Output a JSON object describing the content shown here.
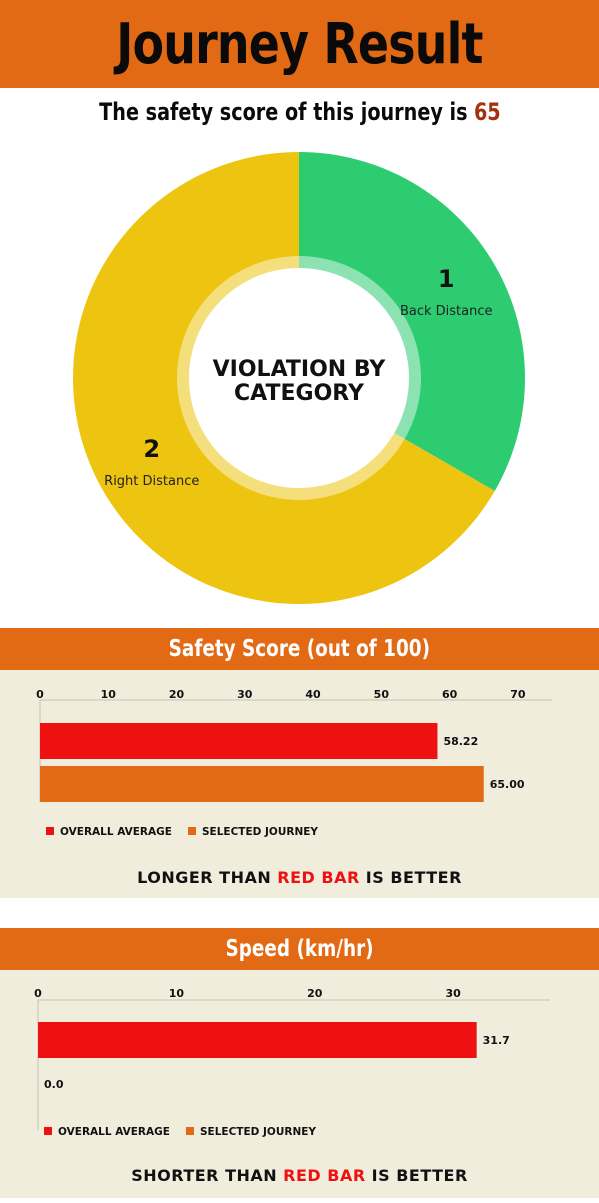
{
  "header": {
    "title": "Journey Result"
  },
  "score_line": {
    "prefix": "The safety score of this journey is",
    "value": "65"
  },
  "colors": {
    "accent": "#e26a15",
    "red_bar": "#ee1111",
    "orange_bar": "#e26a15",
    "donut_green": "#2ecc71",
    "donut_yellow": "#edc511",
    "panel_bg": "#f1eddd"
  },
  "chart_data": [
    {
      "type": "pie",
      "title": "VIOLATION BY CATEGORY",
      "slices": [
        {
          "label": "Back Distance",
          "value": 1,
          "color": "#2ecc71"
        },
        {
          "label": "Right Distance",
          "value": 2,
          "color": "#edc511"
        }
      ]
    },
    {
      "type": "bar",
      "title": "Safety Score (out of 100)",
      "orientation": "horizontal",
      "xlim": [
        0,
        75
      ],
      "ticks": [
        0,
        10,
        20,
        30,
        40,
        50,
        60,
        70
      ],
      "series": [
        {
          "name": "OVERALL AVERAGE",
          "value": 58.22,
          "label": "58.22",
          "color": "#ee1111"
        },
        {
          "name": "SELECTED JOURNEY",
          "value": 65.0,
          "label": "65.00",
          "color": "#e26a15"
        }
      ],
      "note": {
        "before": "LONGER THAN",
        "highlight": "RED BAR",
        "after": "IS BETTER"
      }
    },
    {
      "type": "bar",
      "title": "Speed (km/hr)",
      "orientation": "horizontal",
      "xlim": [
        0,
        37
      ],
      "ticks": [
        0,
        10,
        20,
        30
      ],
      "series": [
        {
          "name": "OVERALL AVERAGE",
          "value": 31.7,
          "label": "31.7",
          "color": "#ee1111"
        },
        {
          "name": "SELECTED JOURNEY",
          "value": 0.0,
          "label": "0.0",
          "color": "#e26a15"
        }
      ],
      "note": {
        "before": "SHORTER THAN",
        "highlight": "RED BAR",
        "after": "IS BETTER"
      }
    }
  ]
}
